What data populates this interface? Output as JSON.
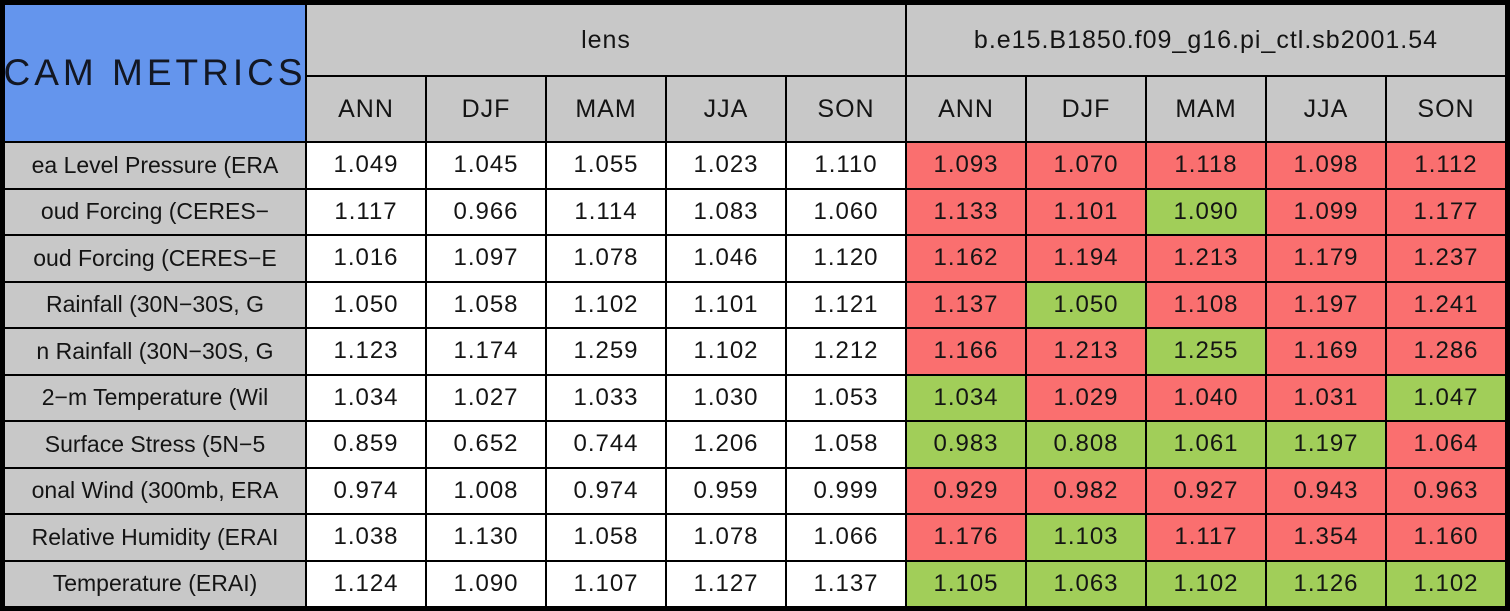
{
  "table": {
    "title": "CAM METRICS",
    "group_headers": {
      "left": "lens",
      "right": "b.e15.B1850.f09_g16.pi_ctl.sb2001.54"
    },
    "seasons": [
      "ANN",
      "DJF",
      "MAM",
      "JJA",
      "SON"
    ],
    "colors": {
      "title_background_blue": "#6495ED",
      "header_gray": "#C8C8C8",
      "lens_cell_white": "#FFFFFF",
      "model_cell_red": "#FA6F6F",
      "model_cell_green": "#A1CE59",
      "border_black": "#000000"
    },
    "rows": [
      {
        "label": "ea Level Pressure (ERA",
        "lens": [
          "1.049",
          "1.045",
          "1.055",
          "1.023",
          "1.110"
        ],
        "model": [
          {
            "value": "1.093",
            "color": "red"
          },
          {
            "value": "1.070",
            "color": "red"
          },
          {
            "value": "1.118",
            "color": "red"
          },
          {
            "value": "1.098",
            "color": "red"
          },
          {
            "value": "1.112",
            "color": "red"
          }
        ]
      },
      {
        "label": "oud Forcing (CERES−",
        "lens": [
          "1.117",
          "0.966",
          "1.114",
          "1.083",
          "1.060"
        ],
        "model": [
          {
            "value": "1.133",
            "color": "red"
          },
          {
            "value": "1.101",
            "color": "red"
          },
          {
            "value": "1.090",
            "color": "green"
          },
          {
            "value": "1.099",
            "color": "red"
          },
          {
            "value": "1.177",
            "color": "red"
          }
        ]
      },
      {
        "label": "oud Forcing (CERES−E",
        "lens": [
          "1.016",
          "1.097",
          "1.078",
          "1.046",
          "1.120"
        ],
        "model": [
          {
            "value": "1.162",
            "color": "red"
          },
          {
            "value": "1.194",
            "color": "red"
          },
          {
            "value": "1.213",
            "color": "red"
          },
          {
            "value": "1.179",
            "color": "red"
          },
          {
            "value": "1.237",
            "color": "red"
          }
        ]
      },
      {
        "label": "Rainfall (30N−30S, G",
        "lens": [
          "1.050",
          "1.058",
          "1.102",
          "1.101",
          "1.121"
        ],
        "model": [
          {
            "value": "1.137",
            "color": "red"
          },
          {
            "value": "1.050",
            "color": "green"
          },
          {
            "value": "1.108",
            "color": "red"
          },
          {
            "value": "1.197",
            "color": "red"
          },
          {
            "value": "1.241",
            "color": "red"
          }
        ]
      },
      {
        "label": "n Rainfall (30N−30S, G",
        "lens": [
          "1.123",
          "1.174",
          "1.259",
          "1.102",
          "1.212"
        ],
        "model": [
          {
            "value": "1.166",
            "color": "red"
          },
          {
            "value": "1.213",
            "color": "red"
          },
          {
            "value": "1.255",
            "color": "green"
          },
          {
            "value": "1.169",
            "color": "red"
          },
          {
            "value": "1.286",
            "color": "red"
          }
        ]
      },
      {
        "label": "2−m Temperature (Wil",
        "lens": [
          "1.034",
          "1.027",
          "1.033",
          "1.030",
          "1.053"
        ],
        "model": [
          {
            "value": "1.034",
            "color": "green"
          },
          {
            "value": "1.029",
            "color": "red"
          },
          {
            "value": "1.040",
            "color": "red"
          },
          {
            "value": "1.031",
            "color": "red"
          },
          {
            "value": "1.047",
            "color": "green"
          }
        ]
      },
      {
        "label": "Surface Stress (5N−5",
        "lens": [
          "0.859",
          "0.652",
          "0.744",
          "1.206",
          "1.058"
        ],
        "model": [
          {
            "value": "0.983",
            "color": "green"
          },
          {
            "value": "0.808",
            "color": "green"
          },
          {
            "value": "1.061",
            "color": "green"
          },
          {
            "value": "1.197",
            "color": "green"
          },
          {
            "value": "1.064",
            "color": "red"
          }
        ]
      },
      {
        "label": "onal Wind (300mb, ERA",
        "lens": [
          "0.974",
          "1.008",
          "0.974",
          "0.959",
          "0.999"
        ],
        "model": [
          {
            "value": "0.929",
            "color": "red"
          },
          {
            "value": "0.982",
            "color": "red"
          },
          {
            "value": "0.927",
            "color": "red"
          },
          {
            "value": "0.943",
            "color": "red"
          },
          {
            "value": "0.963",
            "color": "red"
          }
        ]
      },
      {
        "label": "Relative Humidity (ERAI",
        "lens": [
          "1.038",
          "1.130",
          "1.058",
          "1.078",
          "1.066"
        ],
        "model": [
          {
            "value": "1.176",
            "color": "red"
          },
          {
            "value": "1.103",
            "color": "green"
          },
          {
            "value": "1.117",
            "color": "red"
          },
          {
            "value": "1.354",
            "color": "red"
          },
          {
            "value": "1.160",
            "color": "red"
          }
        ]
      },
      {
        "label": "Temperature (ERAI)",
        "lens": [
          "1.124",
          "1.090",
          "1.107",
          "1.127",
          "1.137"
        ],
        "model": [
          {
            "value": "1.105",
            "color": "green"
          },
          {
            "value": "1.063",
            "color": "green"
          },
          {
            "value": "1.102",
            "color": "green"
          },
          {
            "value": "1.126",
            "color": "green"
          },
          {
            "value": "1.102",
            "color": "green"
          }
        ]
      }
    ]
  },
  "chart_data": {
    "type": "table",
    "title": "CAM METRICS",
    "column_groups": [
      {
        "name": "lens",
        "columns": [
          "ANN",
          "DJF",
          "MAM",
          "JJA",
          "SON"
        ]
      },
      {
        "name": "b.e15.B1850.f09_g16.pi_ctl.sb2001.54",
        "columns": [
          "ANN",
          "DJF",
          "MAM",
          "JJA",
          "SON"
        ]
      }
    ],
    "row_labels": [
      "ea Level Pressure (ERA",
      "oud Forcing (CERES−",
      "oud Forcing (CERES−E",
      "Rainfall (30N−30S, G",
      "n Rainfall (30N−30S, G",
      "2−m Temperature (Wil",
      "Surface Stress (5N−5",
      "onal Wind (300mb, ERA",
      "Relative Humidity (ERAI",
      "Temperature (ERAI)"
    ],
    "series": [
      {
        "name": "lens",
        "values": [
          [
            1.049,
            1.045,
            1.055,
            1.023,
            1.11
          ],
          [
            1.117,
            0.966,
            1.114,
            1.083,
            1.06
          ],
          [
            1.016,
            1.097,
            1.078,
            1.046,
            1.12
          ],
          [
            1.05,
            1.058,
            1.102,
            1.101,
            1.121
          ],
          [
            1.123,
            1.174,
            1.259,
            1.102,
            1.212
          ],
          [
            1.034,
            1.027,
            1.033,
            1.03,
            1.053
          ],
          [
            0.859,
            0.652,
            0.744,
            1.206,
            1.058
          ],
          [
            0.974,
            1.008,
            0.974,
            0.959,
            0.999
          ],
          [
            1.038,
            1.13,
            1.058,
            1.078,
            1.066
          ],
          [
            1.124,
            1.09,
            1.107,
            1.127,
            1.137
          ]
        ]
      },
      {
        "name": "b.e15.B1850.f09_g16.pi_ctl.sb2001.54",
        "values": [
          [
            1.093,
            1.07,
            1.118,
            1.098,
            1.112
          ],
          [
            1.133,
            1.101,
            1.09,
            1.099,
            1.177
          ],
          [
            1.162,
            1.194,
            1.213,
            1.179,
            1.237
          ],
          [
            1.137,
            1.05,
            1.108,
            1.197,
            1.241
          ],
          [
            1.166,
            1.213,
            1.255,
            1.169,
            1.286
          ],
          [
            1.034,
            1.029,
            1.04,
            1.031,
            1.047
          ],
          [
            0.983,
            0.808,
            1.061,
            1.197,
            1.064
          ],
          [
            0.929,
            0.982,
            0.927,
            0.943,
            0.963
          ],
          [
            1.176,
            1.103,
            1.117,
            1.354,
            1.16
          ],
          [
            1.105,
            1.063,
            1.102,
            1.126,
            1.102
          ]
        ],
        "cell_colors": [
          [
            "red",
            "red",
            "red",
            "red",
            "red"
          ],
          [
            "red",
            "red",
            "green",
            "red",
            "red"
          ],
          [
            "red",
            "red",
            "red",
            "red",
            "red"
          ],
          [
            "red",
            "green",
            "red",
            "red",
            "red"
          ],
          [
            "red",
            "red",
            "green",
            "red",
            "red"
          ],
          [
            "green",
            "red",
            "red",
            "red",
            "green"
          ],
          [
            "green",
            "green",
            "green",
            "green",
            "red"
          ],
          [
            "red",
            "red",
            "red",
            "red",
            "red"
          ],
          [
            "red",
            "green",
            "red",
            "red",
            "red"
          ],
          [
            "green",
            "green",
            "green",
            "green",
            "green"
          ]
        ]
      }
    ],
    "layout": {
      "grid": true,
      "cell_backgrounds": "lens columns white; comparison columns red or green"
    }
  }
}
